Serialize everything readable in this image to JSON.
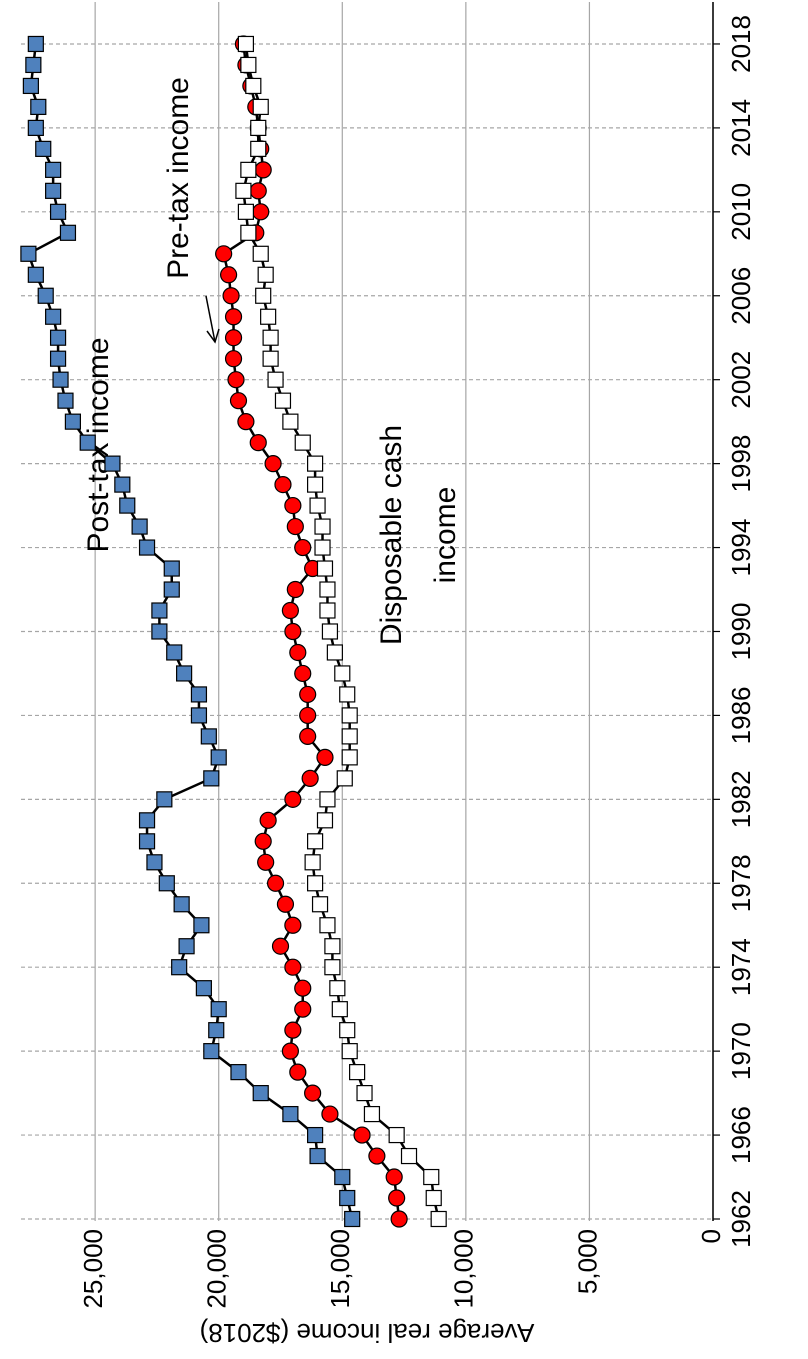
{
  "chart_data": {
    "type": "line",
    "y_label": "Average real income ($2018)",
    "x": [
      1962,
      1963,
      1964,
      1965,
      1966,
      1967,
      1968,
      1969,
      1970,
      1971,
      1972,
      1973,
      1974,
      1975,
      1976,
      1977,
      1978,
      1979,
      1980,
      1981,
      1982,
      1983,
      1984,
      1985,
      1986,
      1987,
      1988,
      1989,
      1990,
      1991,
      1992,
      1993,
      1994,
      1995,
      1996,
      1997,
      1998,
      1999,
      2000,
      2001,
      2002,
      2003,
      2004,
      2005,
      2006,
      2007,
      2008,
      2009,
      2010,
      2011,
      2012,
      2013,
      2014,
      2015,
      2016,
      2017,
      2018
    ],
    "series": [
      {
        "name": "Post-tax income",
        "color": "#4f81bd",
        "marker": "square",
        "values": [
          14600,
          14800,
          15000,
          16000,
          16100,
          17100,
          18300,
          19200,
          20300,
          20100,
          20000,
          20600,
          21600,
          21300,
          20700,
          21500,
          22100,
          22600,
          22900,
          22900,
          22200,
          20300,
          20000,
          20400,
          20800,
          20800,
          21400,
          21800,
          22400,
          22400,
          21900,
          21900,
          22900,
          23200,
          23700,
          23900,
          24300,
          25300,
          25900,
          26200,
          26400,
          26500,
          26500,
          26700,
          27000,
          27400,
          27700,
          26100,
          26500,
          26700,
          26700,
          27100,
          27400,
          27300,
          27600,
          27500,
          27400
        ]
      },
      {
        "name": "Pre-tax income",
        "color": "#ff0000",
        "marker": "circle",
        "values": [
          12700,
          12800,
          12900,
          13600,
          14200,
          15500,
          16200,
          16800,
          17100,
          17000,
          16600,
          16600,
          17000,
          17500,
          17000,
          17300,
          17700,
          18100,
          18200,
          18000,
          17000,
          16300,
          15700,
          16400,
          16400,
          16400,
          16600,
          16800,
          17000,
          17100,
          16900,
          16200,
          16600,
          16900,
          17000,
          17400,
          17800,
          18400,
          18900,
          19200,
          19300,
          19400,
          19400,
          19400,
          19500,
          19600,
          19800,
          18500,
          18300,
          18400,
          18200,
          18300,
          18400,
          18500,
          18700,
          18900,
          19000
        ]
      },
      {
        "name": "Disposable cash income",
        "color": "#ffffff",
        "marker": "square",
        "values": [
          11100,
          11300,
          11400,
          12300,
          12800,
          13800,
          14100,
          14400,
          14700,
          14800,
          15100,
          15200,
          15400,
          15400,
          15600,
          15900,
          16100,
          16200,
          16100,
          15700,
          15600,
          14900,
          14700,
          14700,
          14700,
          14800,
          15000,
          15300,
          15500,
          15600,
          15600,
          15700,
          15800,
          15800,
          16000,
          16100,
          16100,
          16600,
          17100,
          17400,
          17700,
          17900,
          17900,
          18000,
          18200,
          18100,
          18300,
          18800,
          18900,
          19000,
          18800,
          18400,
          18400,
          18300,
          18600,
          18800,
          18900
        ]
      }
    ],
    "xlim": [
      1962,
      2020
    ],
    "xticks": [
      1962,
      1966,
      1970,
      1974,
      1978,
      1982,
      1986,
      1990,
      1994,
      1998,
      2002,
      2006,
      2010,
      2014,
      2018
    ],
    "ylim": [
      0,
      28000
    ],
    "yticks": [
      0,
      {
        "value": 5000,
        "label": "5,000"
      },
      {
        "value": 10000,
        "label": "10,000"
      },
      {
        "value": 15000,
        "label": "15,000"
      },
      {
        "value": 20000,
        "label": "20,000"
      },
      {
        "value": 25000,
        "label": "25,000"
      }
    ],
    "grid": true
  }
}
